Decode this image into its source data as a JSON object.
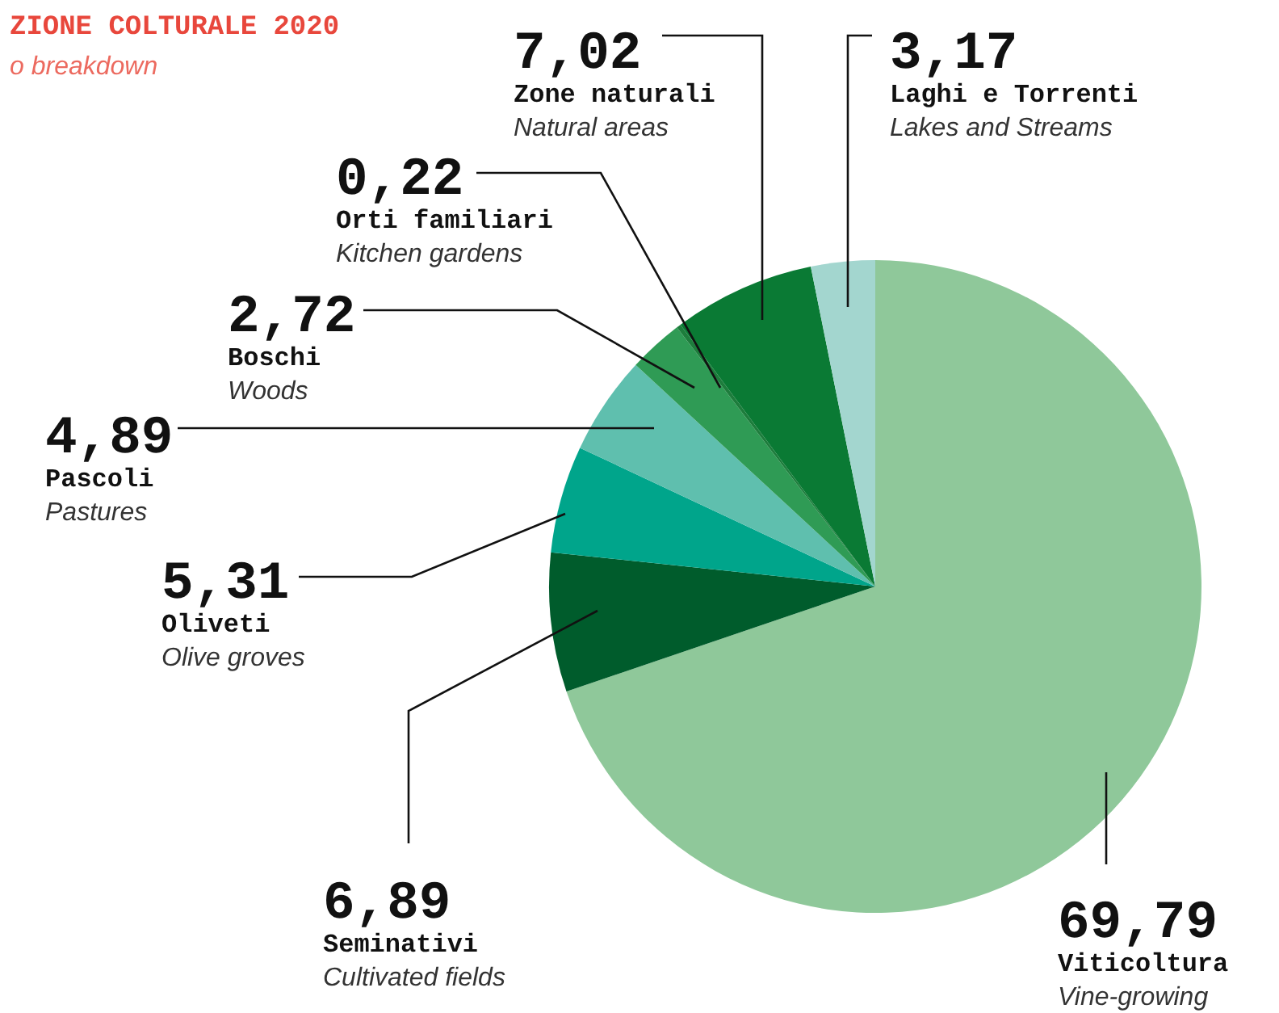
{
  "chart_data": {
    "type": "pie",
    "title": "ZIONE COLTURALE 2020",
    "subtitle": "o breakdown",
    "categories": [
      "Viticoltura",
      "Seminativi",
      "Oliveti",
      "Pascoli",
      "Boschi",
      "Orti familiari",
      "Zone naturali",
      "Laghi e Torrenti"
    ],
    "values": [
      69.79,
      6.89,
      5.31,
      4.89,
      2.72,
      0.22,
      7.02,
      3.17
    ],
    "value_labels": [
      "69,79",
      "6,89",
      "5,31",
      "4,89",
      "2,72",
      "0,22",
      "7,02",
      "3,17"
    ],
    "colors": [
      "#8fc89a",
      "#005c2c",
      "#00a58b",
      "#5fbfae",
      "#2f9b55",
      "#1d7d3c",
      "#0a7a34",
      "#a3d6cf"
    ],
    "annotations": [
      {
        "text": "Vine-growing",
        "x": "Viticoltura"
      },
      {
        "text": "Cultivated fields",
        "x": "Seminativi"
      },
      {
        "text": "Olive groves",
        "x": "Oliveti"
      },
      {
        "text": "Pastures",
        "x": "Pascoli"
      },
      {
        "text": "Woods",
        "x": "Boschi"
      },
      {
        "text": "Kitchen gardens",
        "x": "Orti familiari"
      },
      {
        "text": "Natural areas",
        "x": "Zone naturali"
      },
      {
        "text": "Lakes and Streams",
        "x": "Laghi e Torrenti"
      }
    ]
  }
}
